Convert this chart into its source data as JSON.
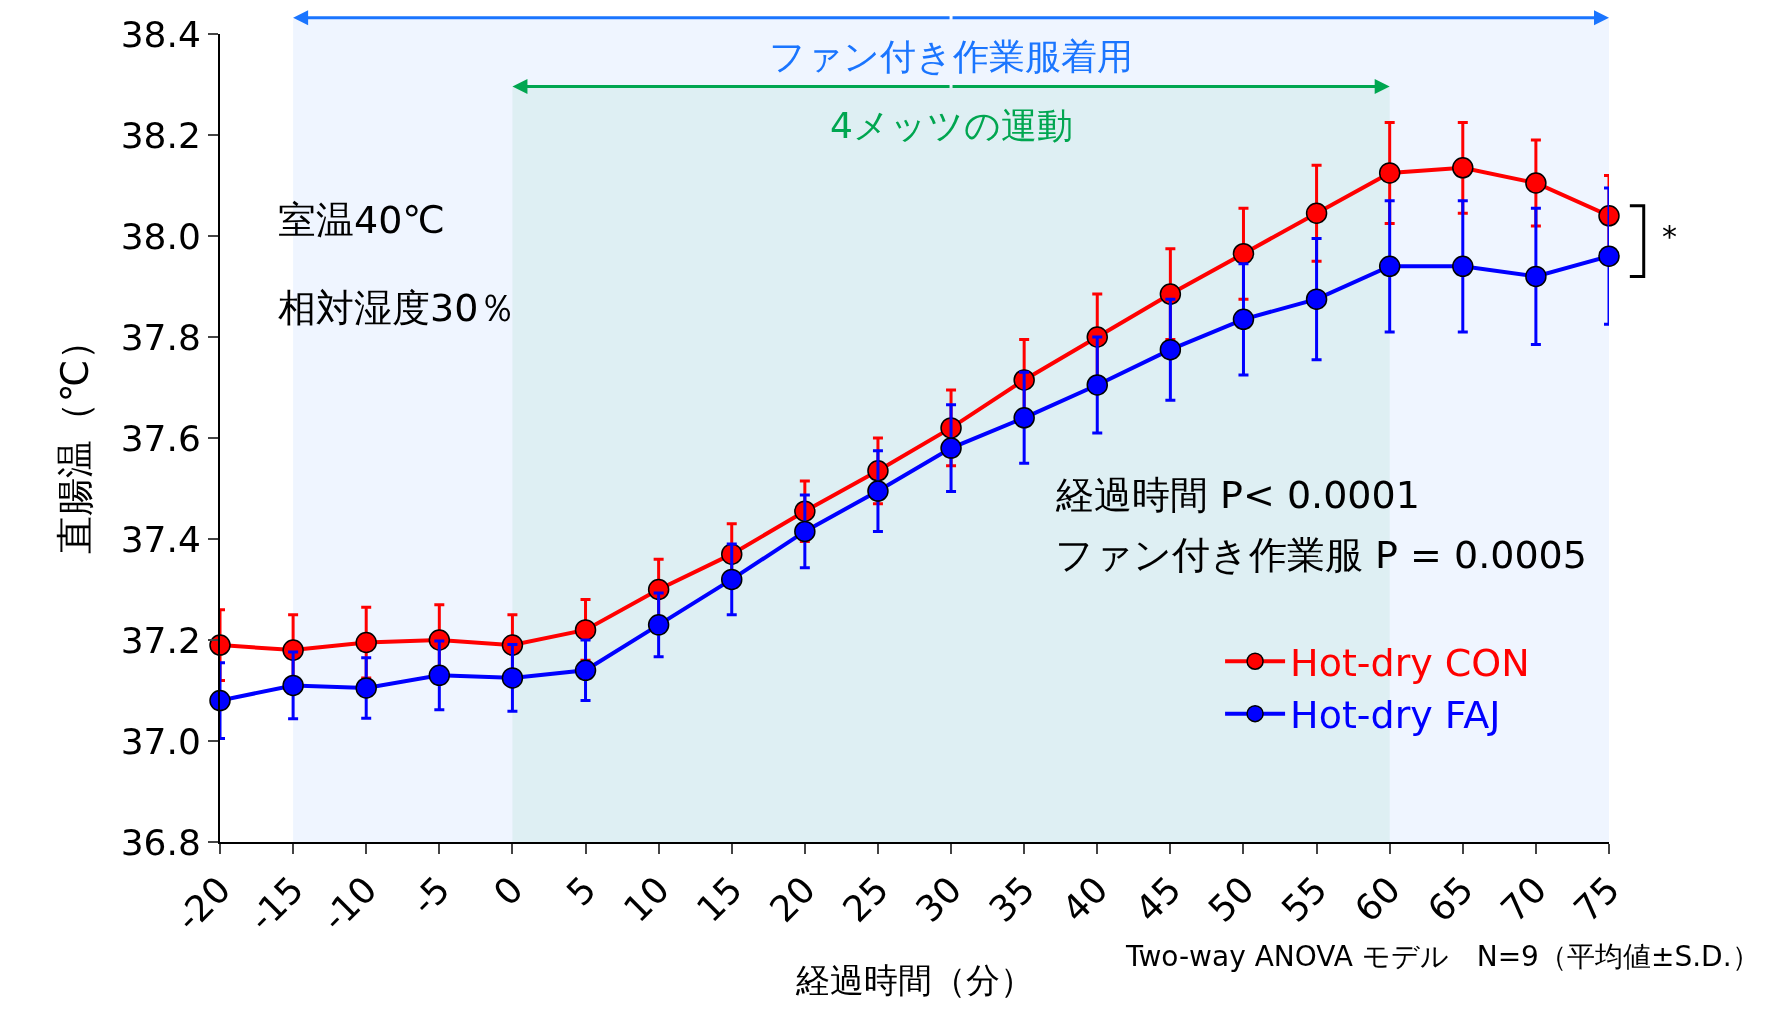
{
  "chart_data": {
    "type": "line",
    "xlabel": "経過時間（分）",
    "ylabel": "直腸温（℃）",
    "x": [
      -20,
      -15,
      -10,
      -5,
      0,
      5,
      10,
      15,
      20,
      25,
      30,
      35,
      40,
      45,
      50,
      55,
      60,
      65,
      70,
      75
    ],
    "series": [
      {
        "name": "Hot-dry CON",
        "color": "#ff0000",
        "values": [
          37.19,
          37.18,
          37.195,
          37.2,
          37.19,
          37.22,
          37.3,
          37.37,
          37.455,
          37.535,
          37.62,
          37.715,
          37.8,
          37.885,
          37.965,
          38.045,
          38.125,
          38.135,
          38.105,
          38.04
        ],
        "errors": [
          0.07,
          0.07,
          0.07,
          0.07,
          0.06,
          0.06,
          0.06,
          0.06,
          0.06,
          0.065,
          0.075,
          0.08,
          0.085,
          0.09,
          0.09,
          0.095,
          0.1,
          0.09,
          0.085,
          0.08
        ]
      },
      {
        "name": "Hot-dry FAJ",
        "color": "#0000ff",
        "values": [
          37.08,
          37.11,
          37.105,
          37.13,
          37.125,
          37.14,
          37.23,
          37.32,
          37.415,
          37.495,
          37.58,
          37.64,
          37.705,
          37.775,
          37.835,
          37.875,
          37.94,
          37.94,
          37.92,
          37.96
        ],
        "errors": [
          0.075,
          0.066,
          0.06,
          0.068,
          0.066,
          0.06,
          0.063,
          0.07,
          0.072,
          0.08,
          0.086,
          0.09,
          0.095,
          0.1,
          0.11,
          0.12,
          0.13,
          0.13,
          0.135,
          0.135
        ]
      }
    ],
    "xlim": [
      -20,
      75
    ],
    "xticks": [
      -20,
      -15,
      -10,
      -5,
      0,
      5,
      10,
      15,
      20,
      25,
      30,
      35,
      40,
      45,
      50,
      55,
      60,
      65,
      70,
      75
    ],
    "ylim": [
      36.8,
      38.4
    ],
    "yticks": [
      {
        "value": 36.8,
        "label": "36.8"
      },
      {
        "value": 37.0,
        "label": "37.0"
      },
      {
        "value": 37.2,
        "label": "37.2"
      },
      {
        "value": 37.4,
        "label": "37.4"
      },
      {
        "value": 37.6,
        "label": "37.6"
      },
      {
        "value": 37.8,
        "label": "37.8"
      },
      {
        "value": 38.0,
        "label": "38.0"
      },
      {
        "value": 38.2,
        "label": "38.2"
      },
      {
        "value": 38.4,
        "label": "38.4"
      }
    ],
    "grid": false,
    "legend": "bottom right",
    "marker": "circle",
    "line_style": "solid",
    "bands": [
      {
        "axis": "x",
        "from": -15,
        "to": 75,
        "label": "ファン付き作業服着用",
        "color": "#1a75ff"
      },
      {
        "axis": "x",
        "from": 0,
        "to": 60,
        "label": "4メッツの運動",
        "color": "#00a650"
      }
    ],
    "annotations": [
      "室温40℃",
      "相対湿度30％",
      "経過時間 P< 0.0001",
      "ファン付き作業服 P = 0.0005",
      {
        "text": "*",
        "x": 75,
        "y": 38.0
      },
      "Two-way ANOVA モデル　N=9（平均値±S.D.）"
    ]
  }
}
